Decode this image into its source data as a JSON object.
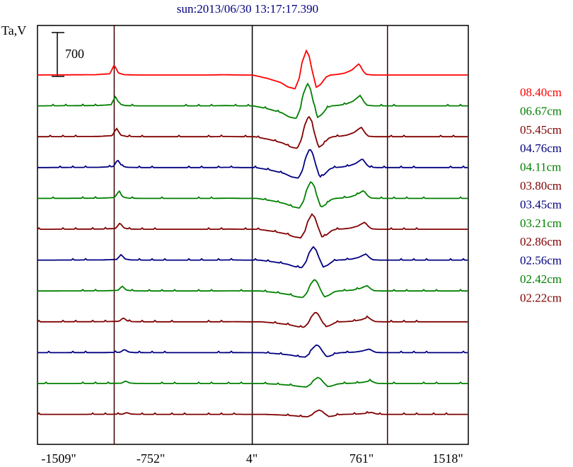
{
  "chart_data": {
    "type": "line",
    "title": "sun:2013/06/30 13:17:17.390",
    "ylabel": "Ta,V",
    "scale_bar_label": "700",
    "scale_bar_value": 700,
    "x_ticks": [
      {
        "value": -1509,
        "label": "-1509\""
      },
      {
        "value": -752,
        "label": "-752\""
      },
      {
        "value": 4,
        "label": "4\""
      },
      {
        "value": 761,
        "label": "761\""
      },
      {
        "value": 1518,
        "label": "1518\""
      }
    ],
    "xlim": [
      -1509,
      1518
    ],
    "vertical_markers": [
      -970,
      0,
      950
    ],
    "series": [
      {
        "name": "08.40cm",
        "color": "#ff0000",
        "offset": 0,
        "x": [
          -1509,
          -1100,
          -1000,
          -970,
          -940,
          -900,
          -800,
          -700,
          -600,
          -500,
          -400,
          -300,
          -200,
          -100,
          0,
          100,
          200,
          250,
          300,
          330,
          350,
          380,
          400,
          420,
          450,
          480,
          520,
          550,
          600,
          650,
          700,
          750,
          780,
          800,
          850,
          900,
          950,
          1000,
          1100,
          1200,
          1300,
          1400,
          1518
        ],
        "y": [
          0,
          5,
          20,
          160,
          30,
          5,
          0,
          0,
          0,
          0,
          0,
          0,
          5,
          0,
          0,
          -50,
          -120,
          -190,
          -220,
          -50,
          200,
          390,
          300,
          80,
          -200,
          -150,
          -30,
          0,
          10,
          30,
          80,
          180,
          60,
          10,
          0,
          0,
          0,
          0,
          0,
          0,
          0,
          0,
          0
        ]
      },
      {
        "name": "06.67cm",
        "color": "#008000",
        "offset": 1
      },
      {
        "name": "05.45cm",
        "color": "#800000",
        "offset": 2
      },
      {
        "name": "04.76cm",
        "color": "#000080",
        "offset": 3
      },
      {
        "name": "04.11cm",
        "color": "#008000",
        "offset": 4
      },
      {
        "name": "03.80cm",
        "color": "#800000",
        "offset": 5
      },
      {
        "name": "03.45cm",
        "color": "#000080",
        "offset": 6
      },
      {
        "name": "03.21cm",
        "color": "#008000",
        "offset": 7
      },
      {
        "name": "02.86cm",
        "color": "#800000",
        "offset": 8
      },
      {
        "name": "02.56cm",
        "color": "#000080",
        "offset": 9
      },
      {
        "name": "02.42cm",
        "color": "#008000",
        "offset": 10
      },
      {
        "name": "02.22cm",
        "color": "#800000",
        "offset": 11
      }
    ],
    "grid": false
  }
}
